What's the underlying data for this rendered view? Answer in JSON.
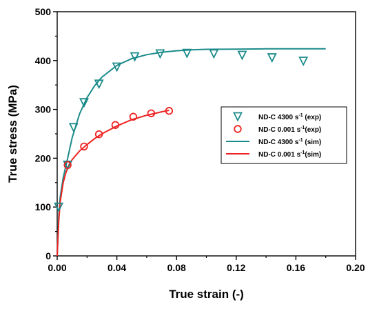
{
  "chart_data": {
    "type": "scatter",
    "xlabel": "True strain (-)",
    "ylabel": "True stress (MPa)",
    "xlim": [
      0.0,
      0.2
    ],
    "ylim": [
      0,
      500
    ],
    "x_ticks": [
      "0.00",
      "0.04",
      "0.08",
      "0.12",
      "0.16",
      "0.20"
    ],
    "x_tick_values": [
      0.0,
      0.04,
      0.08,
      0.12,
      0.16,
      0.2
    ],
    "y_ticks": [
      "0",
      "100",
      "200",
      "300",
      "400",
      "500"
    ],
    "y_tick_values": [
      0,
      100,
      200,
      300,
      400,
      500
    ],
    "grid": false,
    "legend_position": "right-middle",
    "series": [
      {
        "name": "ND-C 4300 s-1 (exp)",
        "legend_parts": [
          "ND-C 4300 s",
          "-1",
          " (exp)"
        ],
        "kind": "marker",
        "marker": "triangle-down",
        "color": "#1b8a8a",
        "x": [
          0.001,
          0.007,
          0.011,
          0.018,
          0.028,
          0.04,
          0.052,
          0.069,
          0.087,
          0.105,
          0.124,
          0.144,
          0.165
        ],
        "y": [
          100,
          186,
          263,
          314,
          352,
          387,
          408,
          414,
          415,
          414,
          411,
          406,
          399
        ]
      },
      {
        "name": "ND-C 0.001 s-1(exp)",
        "legend_parts": [
          "ND-C 0.001 s",
          "-1",
          "(exp)"
        ],
        "kind": "marker",
        "marker": "circle",
        "color": "#ee2222",
        "x": [
          0.007,
          0.018,
          0.028,
          0.039,
          0.051,
          0.063,
          0.075
        ],
        "y": [
          186,
          224,
          249,
          268,
          285,
          292,
          297
        ]
      },
      {
        "name": "ND-C 4300 s-1 (sim)",
        "legend_parts": [
          "ND-C 4300 s",
          "-1",
          " (sim)"
        ],
        "kind": "line",
        "color": "#1b8a8a",
        "x": [
          0.0,
          0.001,
          0.002,
          0.004,
          0.007,
          0.01,
          0.015,
          0.02,
          0.025,
          0.03,
          0.04,
          0.05,
          0.06,
          0.07,
          0.08,
          0.09,
          0.1,
          0.12,
          0.14,
          0.16,
          0.18
        ],
        "y": [
          0,
          80,
          120,
          160,
          200,
          242,
          291,
          324,
          348,
          366,
          390,
          404,
          412,
          417,
          420,
          422,
          423,
          423.5,
          424,
          424,
          424
        ]
      },
      {
        "name": "ND-C 0.001 s-1(sim)",
        "legend_parts": [
          "ND-C 0.001 s",
          "-1",
          "(sim)"
        ],
        "kind": "line",
        "color": "#ee2222",
        "x": [
          0.0,
          0.001,
          0.002,
          0.004,
          0.006,
          0.008,
          0.01,
          0.015,
          0.02,
          0.025,
          0.03,
          0.04,
          0.05,
          0.06,
          0.07,
          0.075
        ],
        "y": [
          0,
          70,
          110,
          150,
          172,
          187,
          197,
          215,
          228,
          240,
          250,
          266,
          279,
          288,
          295,
          298
        ]
      }
    ]
  }
}
